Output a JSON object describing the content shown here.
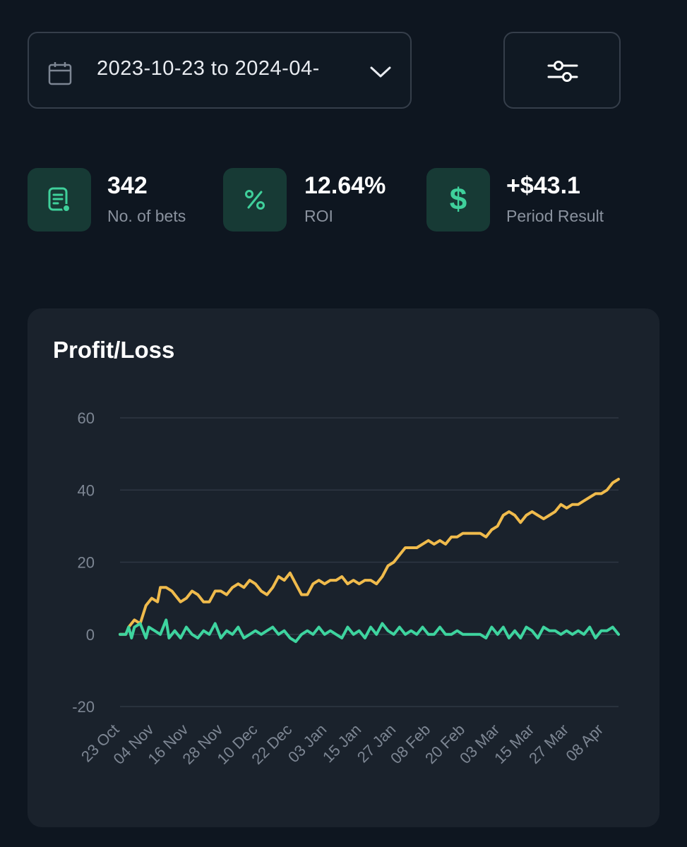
{
  "date_range": {
    "label": "2023-10-23 to 2024-04-",
    "icon": "calendar-icon",
    "dropdown_icon": "chevron-down-icon"
  },
  "filter_button": {
    "icon": "sliders-icon"
  },
  "stats": [
    {
      "value": "342",
      "label": "No. of bets",
      "icon": "bet-slip-icon"
    },
    {
      "value": "12.64%",
      "label": "ROI",
      "icon": "percent-icon"
    },
    {
      "value": "+$43.1",
      "label": "Period Result",
      "icon": "dollar-icon"
    }
  ],
  "colors": {
    "accent_green": "#3fd09b",
    "cumulative_line": "#f0bb4c",
    "daily_line": "#3ed49f",
    "icon_bg": "#173a35"
  },
  "chart_data": {
    "type": "line",
    "title": "Profit/Loss",
    "xlabel": "",
    "ylabel": "",
    "ylim": [
      -20,
      60
    ],
    "yticks": [
      60,
      40,
      20,
      0,
      -20
    ],
    "grid": true,
    "x_tick_labels": [
      "23 Oct",
      "04 Nov",
      "16 Nov",
      "28 Nov",
      "10 Dec",
      "22 Dec",
      "03 Jan",
      "15 Jan",
      "27 Jan",
      "08 Feb",
      "20 Feb",
      "03 Mar",
      "15 Mar",
      "27 Mar",
      "08 Apr"
    ],
    "x_start": "2023-10-23",
    "x_end": "2024-04-13",
    "series": [
      {
        "color": "#f0bb4c",
        "points": [
          [
            "2023-10-23",
            0
          ],
          [
            "2023-10-25",
            0
          ],
          [
            "2023-10-26",
            2
          ],
          [
            "2023-10-28",
            4
          ],
          [
            "2023-10-30",
            3
          ],
          [
            "2023-11-01",
            8
          ],
          [
            "2023-11-03",
            10
          ],
          [
            "2023-11-05",
            9
          ],
          [
            "2023-11-06",
            13
          ],
          [
            "2023-11-08",
            13
          ],
          [
            "2023-11-10",
            12
          ],
          [
            "2023-11-11",
            11
          ],
          [
            "2023-11-13",
            9
          ],
          [
            "2023-11-15",
            10
          ],
          [
            "2023-11-17",
            12
          ],
          [
            "2023-11-19",
            11
          ],
          [
            "2023-11-21",
            9
          ],
          [
            "2023-11-23",
            9
          ],
          [
            "2023-11-25",
            12
          ],
          [
            "2023-11-27",
            12
          ],
          [
            "2023-11-29",
            11
          ],
          [
            "2023-12-01",
            13
          ],
          [
            "2023-12-03",
            14
          ],
          [
            "2023-12-05",
            13
          ],
          [
            "2023-12-07",
            15
          ],
          [
            "2023-12-09",
            14
          ],
          [
            "2023-12-11",
            12
          ],
          [
            "2023-12-13",
            11
          ],
          [
            "2023-12-15",
            13
          ],
          [
            "2023-12-17",
            16
          ],
          [
            "2023-12-19",
            15
          ],
          [
            "2023-12-21",
            17
          ],
          [
            "2023-12-23",
            14
          ],
          [
            "2023-12-25",
            11
          ],
          [
            "2023-12-27",
            11
          ],
          [
            "2023-12-29",
            14
          ],
          [
            "2023-12-31",
            15
          ],
          [
            "2024-01-02",
            14
          ],
          [
            "2024-01-04",
            15
          ],
          [
            "2024-01-06",
            15
          ],
          [
            "2024-01-08",
            16
          ],
          [
            "2024-01-10",
            14
          ],
          [
            "2024-01-12",
            15
          ],
          [
            "2024-01-14",
            14
          ],
          [
            "2024-01-16",
            15
          ],
          [
            "2024-01-18",
            15
          ],
          [
            "2024-01-20",
            14
          ],
          [
            "2024-01-22",
            16
          ],
          [
            "2024-01-24",
            19
          ],
          [
            "2024-01-26",
            20
          ],
          [
            "2024-01-28",
            22
          ],
          [
            "2024-01-30",
            24
          ],
          [
            "2024-02-01",
            24
          ],
          [
            "2024-02-03",
            24
          ],
          [
            "2024-02-05",
            25
          ],
          [
            "2024-02-07",
            26
          ],
          [
            "2024-02-09",
            25
          ],
          [
            "2024-02-11",
            26
          ],
          [
            "2024-02-13",
            25
          ],
          [
            "2024-02-15",
            27
          ],
          [
            "2024-02-17",
            27
          ],
          [
            "2024-02-19",
            28
          ],
          [
            "2024-02-21",
            28
          ],
          [
            "2024-02-23",
            28
          ],
          [
            "2024-02-25",
            28
          ],
          [
            "2024-02-27",
            27
          ],
          [
            "2024-02-29",
            29
          ],
          [
            "2024-03-02",
            30
          ],
          [
            "2024-03-04",
            33
          ],
          [
            "2024-03-06",
            34
          ],
          [
            "2024-03-08",
            33
          ],
          [
            "2024-03-10",
            31
          ],
          [
            "2024-03-12",
            33
          ],
          [
            "2024-03-14",
            34
          ],
          [
            "2024-03-16",
            33
          ],
          [
            "2024-03-18",
            32
          ],
          [
            "2024-03-20",
            33
          ],
          [
            "2024-03-22",
            34
          ],
          [
            "2024-03-24",
            36
          ],
          [
            "2024-03-26",
            35
          ],
          [
            "2024-03-28",
            36
          ],
          [
            "2024-03-30",
            36
          ],
          [
            "2024-04-01",
            37
          ],
          [
            "2024-04-03",
            38
          ],
          [
            "2024-04-05",
            39
          ],
          [
            "2024-04-07",
            39
          ],
          [
            "2024-04-09",
            40
          ],
          [
            "2024-04-11",
            42
          ],
          [
            "2024-04-13",
            43
          ]
        ]
      },
      {
        "color": "#3ed49f",
        "points": [
          [
            "2023-10-23",
            0
          ],
          [
            "2023-10-25",
            0
          ],
          [
            "2023-10-26",
            2
          ],
          [
            "2023-10-27",
            -1
          ],
          [
            "2023-10-28",
            2
          ],
          [
            "2023-10-30",
            3
          ],
          [
            "2023-11-01",
            -1
          ],
          [
            "2023-11-02",
            2
          ],
          [
            "2023-11-04",
            1
          ],
          [
            "2023-11-06",
            0
          ],
          [
            "2023-11-08",
            4
          ],
          [
            "2023-11-09",
            -1
          ],
          [
            "2023-11-11",
            1
          ],
          [
            "2023-11-13",
            -1
          ],
          [
            "2023-11-15",
            2
          ],
          [
            "2023-11-17",
            0
          ],
          [
            "2023-11-19",
            -1
          ],
          [
            "2023-11-21",
            1
          ],
          [
            "2023-11-23",
            0
          ],
          [
            "2023-11-25",
            3
          ],
          [
            "2023-11-27",
            -1
          ],
          [
            "2023-11-29",
            1
          ],
          [
            "2023-12-01",
            0
          ],
          [
            "2023-12-03",
            2
          ],
          [
            "2023-12-05",
            -1
          ],
          [
            "2023-12-07",
            0
          ],
          [
            "2023-12-09",
            1
          ],
          [
            "2023-12-11",
            0
          ],
          [
            "2023-12-13",
            1
          ],
          [
            "2023-12-15",
            2
          ],
          [
            "2023-12-17",
            0
          ],
          [
            "2023-12-19",
            1
          ],
          [
            "2023-12-21",
            -1
          ],
          [
            "2023-12-23",
            -2
          ],
          [
            "2023-12-25",
            0
          ],
          [
            "2023-12-27",
            1
          ],
          [
            "2023-12-29",
            0
          ],
          [
            "2023-12-31",
            2
          ],
          [
            "2024-01-02",
            0
          ],
          [
            "2024-01-04",
            1
          ],
          [
            "2024-01-06",
            0
          ],
          [
            "2024-01-08",
            -1
          ],
          [
            "2024-01-10",
            2
          ],
          [
            "2024-01-12",
            0
          ],
          [
            "2024-01-14",
            1
          ],
          [
            "2024-01-16",
            -1
          ],
          [
            "2024-01-18",
            2
          ],
          [
            "2024-01-20",
            0
          ],
          [
            "2024-01-22",
            3
          ],
          [
            "2024-01-24",
            1
          ],
          [
            "2024-01-26",
            0
          ],
          [
            "2024-01-28",
            2
          ],
          [
            "2024-01-30",
            0
          ],
          [
            "2024-02-01",
            1
          ],
          [
            "2024-02-03",
            0
          ],
          [
            "2024-02-05",
            2
          ],
          [
            "2024-02-07",
            0
          ],
          [
            "2024-02-09",
            0
          ],
          [
            "2024-02-11",
            2
          ],
          [
            "2024-02-13",
            0
          ],
          [
            "2024-02-15",
            0
          ],
          [
            "2024-02-17",
            1
          ],
          [
            "2024-02-19",
            0
          ],
          [
            "2024-02-21",
            0
          ],
          [
            "2024-02-23",
            0
          ],
          [
            "2024-02-25",
            0
          ],
          [
            "2024-02-27",
            -1
          ],
          [
            "2024-02-29",
            2
          ],
          [
            "2024-03-02",
            0
          ],
          [
            "2024-03-04",
            2
          ],
          [
            "2024-03-06",
            -1
          ],
          [
            "2024-03-08",
            1
          ],
          [
            "2024-03-10",
            -1
          ],
          [
            "2024-03-12",
            2
          ],
          [
            "2024-03-14",
            1
          ],
          [
            "2024-03-16",
            -1
          ],
          [
            "2024-03-18",
            2
          ],
          [
            "2024-03-20",
            1
          ],
          [
            "2024-03-22",
            1
          ],
          [
            "2024-03-24",
            0
          ],
          [
            "2024-03-26",
            1
          ],
          [
            "2024-03-28",
            0
          ],
          [
            "2024-03-30",
            1
          ],
          [
            "2024-04-01",
            0
          ],
          [
            "2024-04-03",
            2
          ],
          [
            "2024-04-05",
            -1
          ],
          [
            "2024-04-07",
            1
          ],
          [
            "2024-04-09",
            1
          ],
          [
            "2024-04-11",
            2
          ],
          [
            "2024-04-13",
            0
          ]
        ]
      }
    ]
  }
}
